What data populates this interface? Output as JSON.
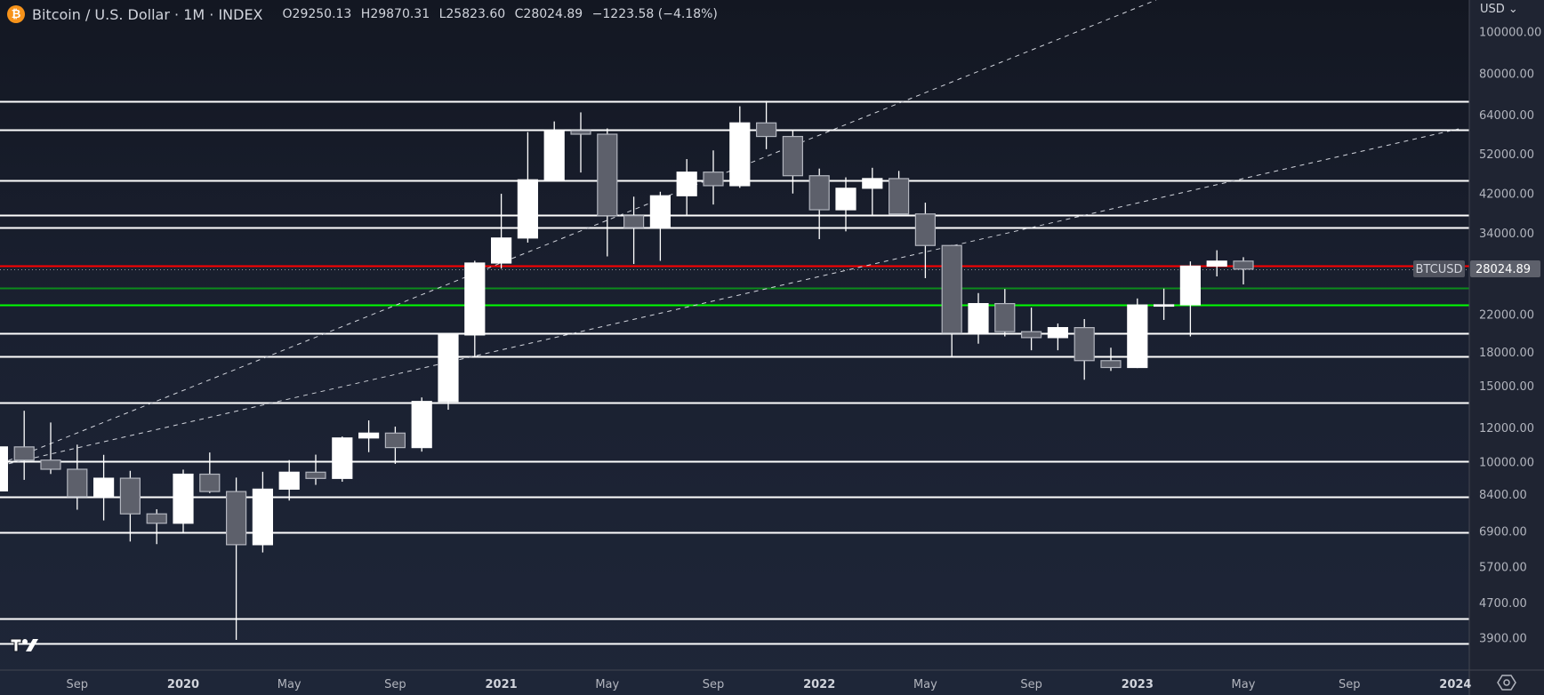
{
  "header": {
    "symbol_title": "Bitcoin / U.S. Dollar · 1M · INDEX",
    "open": "O29250.13",
    "high": "H29870.31",
    "low": "L25823.60",
    "close": "C28024.89",
    "change": "−1223.58 (−4.18%)",
    "currency": "USD"
  },
  "colors": {
    "up": "#ffffff",
    "down": "#5d606b",
    "border_down": "#b2b5be",
    "resistance": "#ff0000",
    "support_dark": "#0c8a1c",
    "support_bright": "#00ff00",
    "level": "#ffffff",
    "accent": "#f7931a"
  },
  "chart_data": {
    "type": "candlestick",
    "title": "Bitcoin / U.S. Dollar · 1M · INDEX",
    "scale": "log",
    "ylim": [
      3500,
      115000
    ],
    "y_ticks": [
      100000,
      80000,
      64000,
      52000,
      42000,
      34000,
      22000,
      18000,
      15000,
      12000,
      10000,
      8400,
      6900,
      5700,
      4700,
      3900
    ],
    "y_tick_labels": [
      "100000.00",
      "80000.00",
      "64000.00",
      "52000.00",
      "42000.00",
      "34000.00",
      "22000.00",
      "18000.00",
      "15000.00",
      "12000.00",
      "10000.00",
      "8400.00",
      "6900.00",
      "5700.00",
      "4700.00",
      "3900.00"
    ],
    "x_ticks": [
      {
        "m": -4,
        "label": "Sep"
      },
      {
        "m": 0,
        "label": "2020",
        "bold": true
      },
      {
        "m": 4,
        "label": "May"
      },
      {
        "m": 8,
        "label": "Sep"
      },
      {
        "m": 12,
        "label": "2021",
        "bold": true
      },
      {
        "m": 16,
        "label": "May"
      },
      {
        "m": 20,
        "label": "Sep"
      },
      {
        "m": 24,
        "label": "2022",
        "bold": true
      },
      {
        "m": 28,
        "label": "May"
      },
      {
        "m": 32,
        "label": "Sep"
      },
      {
        "m": 36,
        "label": "2023",
        "bold": true
      },
      {
        "m": 40,
        "label": "May"
      },
      {
        "m": 44,
        "label": "Sep"
      },
      {
        "m": 48,
        "label": "2024",
        "bold": true
      }
    ],
    "candles_note": "[monthIndexFromJan2020, open, high, low, close]",
    "candles": [
      [
        -7,
        8550,
        13880,
        7450,
        10820
      ],
      [
        -6,
        10820,
        13130,
        9070,
        10080
      ],
      [
        -5,
        10080,
        12330,
        9360,
        9600
      ],
      [
        -4,
        9600,
        10950,
        7730,
        8290
      ],
      [
        -3,
        8290,
        10370,
        7300,
        9150
      ],
      [
        -2,
        9150,
        9520,
        6520,
        7560
      ],
      [
        -1,
        7560,
        7750,
        6430,
        7190
      ],
      [
        0,
        7190,
        9580,
        6850,
        9350
      ],
      [
        1,
        9350,
        10500,
        8450,
        8520
      ],
      [
        2,
        8520,
        9180,
        3850,
        6410
      ],
      [
        3,
        6410,
        9470,
        6150,
        8630
      ],
      [
        4,
        8630,
        10080,
        8120,
        9450
      ],
      [
        5,
        9450,
        10380,
        8830,
        9140
      ],
      [
        6,
        9140,
        11440,
        8980,
        11350
      ],
      [
        7,
        11350,
        12470,
        10520,
        11650
      ],
      [
        8,
        11650,
        12060,
        9880,
        10780
      ],
      [
        9,
        10780,
        14100,
        10550,
        13800
      ],
      [
        10,
        13800,
        19880,
        13200,
        19700
      ],
      [
        11,
        19700,
        29300,
        17600,
        28950
      ],
      [
        12,
        28950,
        41950,
        28100,
        33100
      ],
      [
        13,
        33100,
        58350,
        32300,
        45200
      ],
      [
        14,
        45200,
        61780,
        44950,
        58800
      ],
      [
        15,
        58800,
        64850,
        47000,
        57700
      ],
      [
        16,
        57700,
        59500,
        30000,
        37300
      ],
      [
        17,
        37300,
        41300,
        28800,
        35000
      ],
      [
        18,
        35000,
        42400,
        29300,
        41500
      ],
      [
        19,
        41500,
        50500,
        37300,
        47100
      ],
      [
        20,
        47100,
        52900,
        39600,
        43800
      ],
      [
        21,
        43800,
        67000,
        43300,
        61300
      ],
      [
        22,
        61300,
        69000,
        53250,
        57000
      ],
      [
        23,
        57000,
        59100,
        42000,
        46200
      ],
      [
        24,
        46200,
        48000,
        32900,
        38500
      ],
      [
        25,
        38500,
        45800,
        34300,
        43200
      ],
      [
        26,
        43200,
        48200,
        37200,
        45500
      ],
      [
        27,
        45500,
        47400,
        37600,
        37650
      ],
      [
        28,
        37650,
        40000,
        26700,
        31800
      ],
      [
        29,
        31800,
        31900,
        17600,
        19900
      ],
      [
        30,
        19900,
        24650,
        18800,
        23300
      ],
      [
        31,
        23300,
        25200,
        19550,
        20050
      ],
      [
        32,
        20050,
        22800,
        18150,
        19420
      ],
      [
        33,
        19420,
        20950,
        18150,
        20490
      ],
      [
        34,
        20490,
        21450,
        15500,
        17170
      ],
      [
        35,
        17170,
        18400,
        16250,
        16550
      ],
      [
        36,
        16550,
        23950,
        16500,
        23130
      ],
      [
        37,
        23130,
        25250,
        21350,
        23150
      ],
      [
        38,
        23150,
        29200,
        19550,
        28480
      ],
      [
        39,
        28480,
        31000,
        26950,
        29250
      ],
      [
        40,
        29250,
        29870.31,
        25823.6,
        28024.89
      ]
    ],
    "levels": [
      {
        "price": 68800,
        "kind": "level"
      },
      {
        "price": 59100,
        "kind": "level"
      },
      {
        "price": 45100,
        "kind": "level"
      },
      {
        "price": 37400,
        "kind": "level"
      },
      {
        "price": 35000,
        "kind": "level"
      },
      {
        "price": 28500,
        "kind": "resistance"
      },
      {
        "price": 25300,
        "kind": "support_dark"
      },
      {
        "price": 23150,
        "kind": "support_bright"
      },
      {
        "price": 19900,
        "kind": "level"
      },
      {
        "price": 17600,
        "kind": "level"
      },
      {
        "price": 13700,
        "kind": "level"
      },
      {
        "price": 10000,
        "kind": "level"
      },
      {
        "price": 8280,
        "kind": "level"
      },
      {
        "price": 6850,
        "kind": "level"
      },
      {
        "price": 4320,
        "kind": "level"
      },
      {
        "price": 3780,
        "kind": "level"
      }
    ],
    "last_price": 28024.89,
    "last_price_label": "28024.89",
    "symbol_label": "BTCUSD"
  }
}
